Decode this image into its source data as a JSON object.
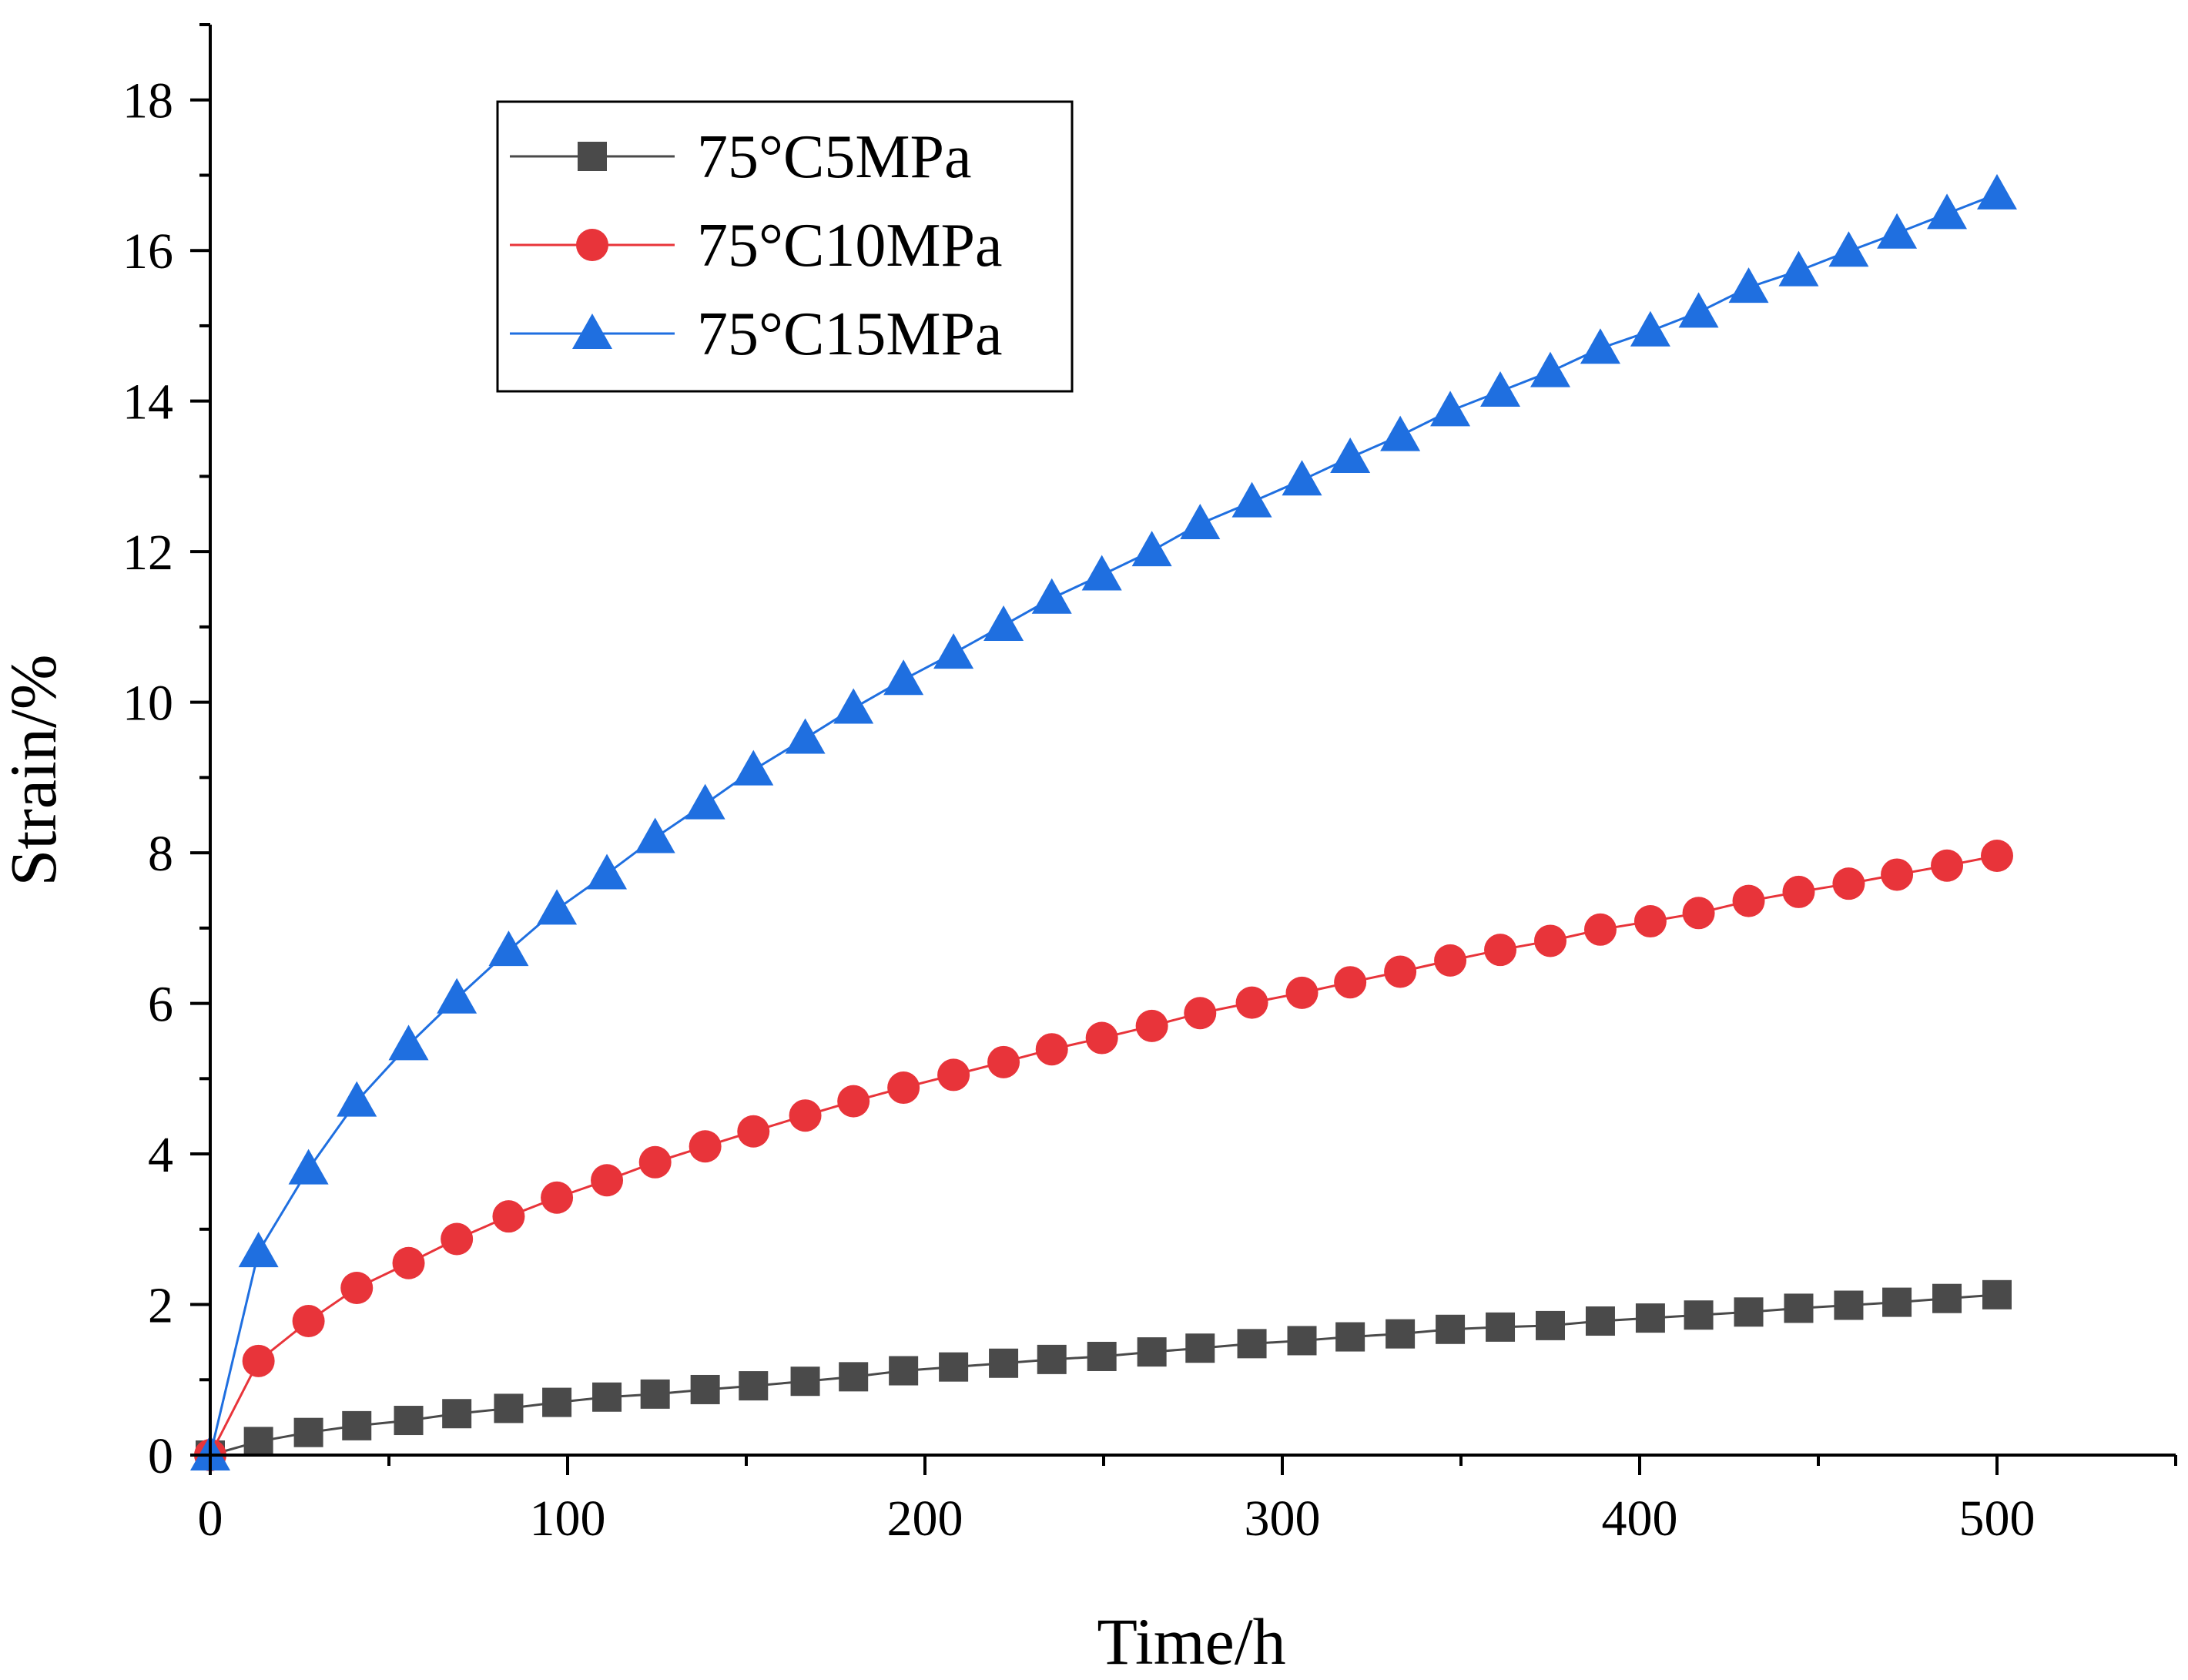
{
  "chart_data": {
    "type": "line",
    "title": "",
    "xlabel": "Time/h",
    "ylabel": "Strain/%",
    "xlim": [
      0,
      550
    ],
    "ylim": [
      0,
      19
    ],
    "xticks": [
      0,
      100,
      200,
      300,
      400,
      500
    ],
    "yticks": [
      0,
      2,
      4,
      6,
      8,
      10,
      12,
      14,
      16,
      18
    ],
    "legend_position": "top-left",
    "grid": false,
    "x": [
      0,
      13.5,
      27.5,
      41,
      55.5,
      69,
      83.5,
      97,
      111,
      124.5,
      138.5,
      152,
      166.5,
      180,
      194,
      208,
      222,
      235.5,
      249.5,
      263.5,
      277,
      291.5,
      305.5,
      319,
      333,
      347,
      361,
      375,
      389,
      403,
      416.5,
      430.5,
      444.5,
      458.5,
      472,
      486,
      500
    ],
    "series": [
      {
        "name": "75°C5MPa",
        "color": "#4a4a4a",
        "marker": "square",
        "values": [
          0,
          0.18,
          0.3,
          0.39,
          0.46,
          0.55,
          0.62,
          0.7,
          0.77,
          0.81,
          0.87,
          0.92,
          0.98,
          1.04,
          1.12,
          1.17,
          1.22,
          1.27,
          1.31,
          1.37,
          1.42,
          1.48,
          1.52,
          1.57,
          1.61,
          1.67,
          1.7,
          1.72,
          1.78,
          1.82,
          1.86,
          1.9,
          1.95,
          1.99,
          2.03,
          2.08,
          2.13
        ]
      },
      {
        "name": "75°C10MPa",
        "color": "#e8343a",
        "marker": "circle",
        "values": [
          0,
          1.25,
          1.78,
          2.22,
          2.55,
          2.87,
          3.17,
          3.42,
          3.65,
          3.89,
          4.1,
          4.3,
          4.51,
          4.7,
          4.88,
          5.05,
          5.22,
          5.39,
          5.54,
          5.7,
          5.87,
          6.01,
          6.14,
          6.28,
          6.42,
          6.57,
          6.71,
          6.83,
          6.98,
          7.09,
          7.2,
          7.36,
          7.48,
          7.59,
          7.71,
          7.83,
          7.96
        ]
      },
      {
        "name": "75°C15MPa",
        "color": "#1f6fe0",
        "marker": "triangle",
        "values": [
          0,
          2.7,
          3.8,
          4.7,
          5.45,
          6.07,
          6.7,
          7.25,
          7.72,
          8.2,
          8.65,
          9.1,
          9.52,
          9.92,
          10.3,
          10.65,
          11.02,
          11.38,
          11.69,
          12.01,
          12.37,
          12.66,
          12.95,
          13.25,
          13.54,
          13.87,
          14.13,
          14.39,
          14.7,
          14.93,
          15.18,
          15.51,
          15.73,
          15.99,
          16.23,
          16.49,
          16.75
        ]
      }
    ]
  }
}
